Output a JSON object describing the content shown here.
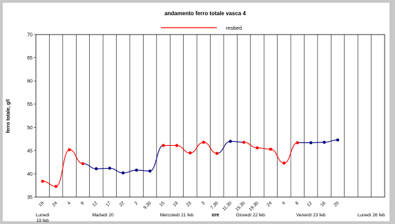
{
  "chart_data": {
    "type": "line",
    "title": "andamento ferro totale vasca 4",
    "xlabel": "ore",
    "ylabel": "ferro totale, g/l",
    "ylim": [
      35,
      70
    ],
    "yticks": [
      35,
      40,
      45,
      50,
      55,
      60,
      65,
      70
    ],
    "grid": "vertical",
    "legend_position": "top-center",
    "legend": [
      {
        "label": "resibed",
        "color": "#ff0000"
      }
    ],
    "categories": [
      "19",
      "24",
      "4",
      "8",
      "12",
      "17",
      "22",
      "2",
      "9.30",
      "15",
      "19",
      "23",
      "3",
      "7.30",
      "11.30",
      "15.30",
      "19.30",
      "24",
      "4",
      "8",
      "12",
      "16",
      "20"
    ],
    "values": [
      38.4,
      37.3,
      45.2,
      42.2,
      41.1,
      41.2,
      40.2,
      40.8,
      40.6,
      46.1,
      46.1,
      44.5,
      46.8,
      44.4,
      47.0,
      46.8,
      45.6,
      45.3,
      42.3,
      46.7,
      46.7,
      46.8,
      47.3
    ],
    "segment_colors": [
      "red",
      "red",
      "red",
      "navy",
      "navy",
      "navy",
      "navy",
      "navy",
      "navy",
      "red",
      "red",
      "red",
      "red",
      "navy",
      "navy",
      "red",
      "red",
      "red",
      "red",
      "navy",
      "navy",
      "navy"
    ],
    "day_labels": [
      {
        "text": "Lunedì\n19 feb",
        "at": 0
      },
      {
        "text": "Martedì 20",
        "at": 4.5
      },
      {
        "text": "Mercoledì 21 feb",
        "at": 10
      },
      {
        "text": "Giovedì 22 feb",
        "at": 15.5
      },
      {
        "text": "Venerdì 23 feb",
        "at": 20
      },
      {
        "text": "Lunedì 26 feb",
        "at": 24.5
      }
    ],
    "colors": {
      "red": "#ff0000",
      "navy": "#000080",
      "plot_bg": "#ffffff",
      "page_bg": "#c8c8c8"
    }
  }
}
